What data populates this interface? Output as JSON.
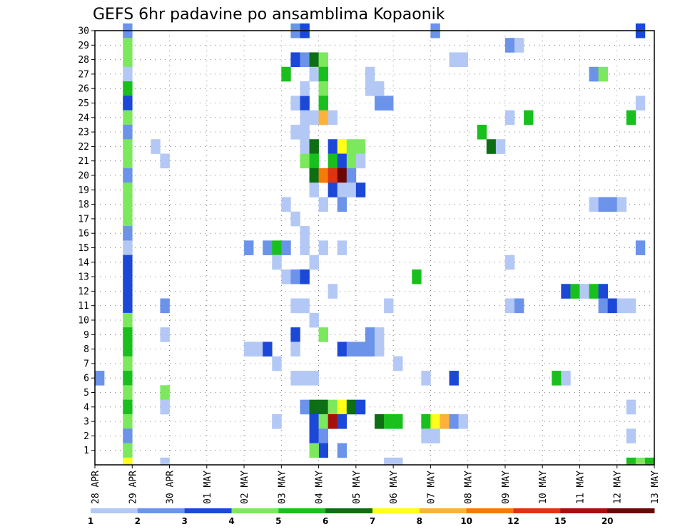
{
  "chart_data": {
    "type": "heatmap",
    "title": "GEFS 6hr padavine po ansamblima Kopaonik",
    "xlabel": "",
    "ylabel": "",
    "x_tick_labels": [
      "28 APR",
      "29 APR",
      "30 APR",
      "01 MAY",
      "02 MAY",
      "03 MAY",
      "04 MAY",
      "05 MAY",
      "06 MAY",
      "07 MAY",
      "08 MAY",
      "09 MAY",
      "10 MAY",
      "11 MAY",
      "12 MAY",
      "13 MAY"
    ],
    "x_steps": 60,
    "steps_per_day": 4,
    "y_range": [
      0,
      30
    ],
    "y_tick_labels": [
      "1",
      "2",
      "3",
      "4",
      "5",
      "6",
      "7",
      "8",
      "9",
      "10",
      "11",
      "12",
      "13",
      "14",
      "15",
      "16",
      "17",
      "18",
      "19",
      "20",
      "21",
      "22",
      "23",
      "24",
      "25",
      "26",
      "27",
      "28",
      "29",
      "30"
    ],
    "grid": true,
    "colorbar": {
      "labels": [
        "1",
        "2",
        "3",
        "4",
        "5",
        "6",
        "7",
        "8",
        "10",
        "12",
        "15",
        "20"
      ],
      "colors": [
        "#b3c8f5",
        "#6b93ea",
        "#1c48d8",
        "#7ce85e",
        "#19c01d",
        "#0e6e13",
        "#ffff1a",
        "#fbb13a",
        "#f47a0a",
        "#dd3412",
        "#a5100f",
        "#6b0606"
      ]
    },
    "cells": [
      [
        3,
        30,
        1
      ],
      [
        3,
        29,
        3
      ],
      [
        3,
        28,
        3
      ],
      [
        3,
        27,
        0
      ],
      [
        3,
        26,
        4
      ],
      [
        3,
        25,
        2
      ],
      [
        3,
        24,
        3
      ],
      [
        3,
        23,
        1
      ],
      [
        3,
        22,
        3
      ],
      [
        3,
        21,
        3
      ],
      [
        3,
        20,
        1
      ],
      [
        3,
        19,
        3
      ],
      [
        3,
        18,
        3
      ],
      [
        3,
        17,
        3
      ],
      [
        3,
        16,
        1
      ],
      [
        3,
        15,
        0
      ],
      [
        3,
        14,
        2
      ],
      [
        3,
        13,
        2
      ],
      [
        3,
        12,
        2
      ],
      [
        3,
        11,
        2
      ],
      [
        3,
        10,
        3
      ],
      [
        3,
        9,
        4
      ],
      [
        3,
        8,
        4
      ],
      [
        3,
        7,
        3
      ],
      [
        3,
        6,
        4
      ],
      [
        3,
        5,
        3
      ],
      [
        3,
        4,
        4
      ],
      [
        3,
        3,
        3
      ],
      [
        3,
        2,
        1
      ],
      [
        3,
        1,
        3
      ],
      [
        3,
        0,
        6
      ],
      [
        0,
        6,
        1
      ],
      [
        6,
        22,
        0
      ],
      [
        7,
        21,
        0
      ],
      [
        7,
        11,
        1
      ],
      [
        7,
        9,
        0
      ],
      [
        7,
        5,
        3
      ],
      [
        7,
        4,
        0
      ],
      [
        7,
        0,
        0
      ],
      [
        16,
        15,
        1
      ],
      [
        16,
        8,
        0
      ],
      [
        17,
        8,
        0
      ],
      [
        18,
        8,
        2
      ],
      [
        18,
        15,
        1
      ],
      [
        19,
        15,
        4
      ],
      [
        20,
        15,
        1
      ],
      [
        19,
        14,
        0
      ],
      [
        19,
        7,
        0
      ],
      [
        19,
        3,
        0
      ],
      [
        20,
        18,
        0
      ],
      [
        20,
        13,
        0
      ],
      [
        21,
        30,
        1
      ],
      [
        22,
        30,
        2
      ],
      [
        21,
        28,
        2
      ],
      [
        22,
        28,
        1
      ],
      [
        21,
        25,
        0
      ],
      [
        22,
        25,
        2
      ],
      [
        22,
        26,
        0
      ],
      [
        21,
        23,
        0
      ],
      [
        22,
        23,
        0
      ],
      [
        22,
        22,
        0
      ],
      [
        21,
        17,
        0
      ],
      [
        22,
        16,
        0
      ],
      [
        21,
        13,
        1
      ],
      [
        22,
        13,
        2
      ],
      [
        21,
        11,
        0
      ],
      [
        22,
        11,
        0
      ],
      [
        21,
        9,
        2
      ],
      [
        21,
        8,
        0
      ],
      [
        21,
        6,
        0
      ],
      [
        22,
        6,
        0
      ],
      [
        23,
        6,
        0
      ],
      [
        20,
        27,
        4
      ],
      [
        23,
        28,
        5
      ],
      [
        24,
        28,
        3
      ],
      [
        23,
        27,
        0
      ],
      [
        24,
        27,
        4
      ],
      [
        24,
        26,
        3
      ],
      [
        24,
        25,
        4
      ],
      [
        22,
        24,
        0
      ],
      [
        23,
        24,
        0
      ],
      [
        24,
        24,
        7
      ],
      [
        25,
        24,
        0
      ],
      [
        23,
        22,
        5
      ],
      [
        25,
        22,
        2
      ],
      [
        26,
        22,
        6
      ],
      [
        27,
        22,
        3
      ],
      [
        28,
        22,
        3
      ],
      [
        22,
        21,
        3
      ],
      [
        23,
        21,
        4
      ],
      [
        25,
        21,
        4
      ],
      [
        26,
        21,
        2
      ],
      [
        27,
        21,
        3
      ],
      [
        28,
        21,
        0
      ],
      [
        24,
        20,
        0
      ],
      [
        23,
        20,
        5
      ],
      [
        24,
        20,
        8
      ],
      [
        25,
        20,
        9
      ],
      [
        26,
        20,
        11
      ],
      [
        27,
        20,
        1
      ],
      [
        23,
        19,
        0
      ],
      [
        25,
        19,
        2
      ],
      [
        26,
        19,
        0
      ],
      [
        27,
        19,
        0
      ],
      [
        28,
        19,
        2
      ],
      [
        24,
        18,
        0
      ],
      [
        26,
        18,
        1
      ],
      [
        22,
        15,
        0
      ],
      [
        24,
        15,
        0
      ],
      [
        26,
        15,
        0
      ],
      [
        23,
        14,
        0
      ],
      [
        25,
        12,
        0
      ],
      [
        23,
        10,
        0
      ],
      [
        24,
        9,
        3
      ],
      [
        26,
        8,
        2
      ],
      [
        27,
        8,
        1
      ],
      [
        28,
        8,
        1
      ],
      [
        29,
        8,
        1
      ],
      [
        30,
        8,
        0
      ],
      [
        29,
        9,
        1
      ],
      [
        30,
        9,
        0
      ],
      [
        22,
        4,
        1
      ],
      [
        23,
        4,
        5
      ],
      [
        24,
        4,
        5
      ],
      [
        25,
        4,
        3
      ],
      [
        26,
        4,
        6
      ],
      [
        27,
        4,
        5
      ],
      [
        28,
        4,
        2
      ],
      [
        23,
        3,
        2
      ],
      [
        24,
        3,
        3
      ],
      [
        25,
        3,
        10
      ],
      [
        26,
        3,
        2
      ],
      [
        19,
        3,
        0
      ],
      [
        23,
        2,
        2
      ],
      [
        24,
        2,
        1
      ],
      [
        24,
        1,
        2
      ],
      [
        23,
        1,
        3
      ],
      [
        26,
        1,
        1
      ],
      [
        30,
        3,
        5
      ],
      [
        31,
        3,
        4
      ],
      [
        32,
        3,
        4
      ],
      [
        31,
        0,
        0
      ],
      [
        32,
        0,
        0
      ],
      [
        29,
        27,
        0
      ],
      [
        29,
        26,
        0
      ],
      [
        30,
        25,
        1
      ],
      [
        31,
        25,
        1
      ],
      [
        30,
        26,
        0
      ],
      [
        32,
        7,
        0
      ],
      [
        31,
        11,
        0
      ],
      [
        34,
        13,
        4
      ],
      [
        35,
        6,
        0
      ],
      [
        35,
        3,
        4
      ],
      [
        36,
        3,
        6
      ],
      [
        37,
        3,
        7
      ],
      [
        38,
        3,
        1
      ],
      [
        39,
        3,
        0
      ],
      [
        35,
        2,
        0
      ],
      [
        36,
        2,
        0
      ],
      [
        38,
        6,
        2
      ],
      [
        38,
        28,
        0
      ],
      [
        39,
        28,
        0
      ],
      [
        36,
        30,
        1
      ],
      [
        41,
        23,
        4
      ],
      [
        42,
        22,
        5
      ],
      [
        43,
        22,
        0
      ],
      [
        44,
        29,
        1
      ],
      [
        45,
        29,
        0
      ],
      [
        44,
        24,
        0
      ],
      [
        46,
        24,
        4
      ],
      [
        44,
        14,
        0
      ],
      [
        44,
        11,
        0
      ],
      [
        45,
        11,
        1
      ],
      [
        49,
        6,
        4
      ],
      [
        50,
        6,
        0
      ],
      [
        50,
        12,
        2
      ],
      [
        51,
        12,
        4
      ],
      [
        52,
        12,
        0
      ],
      [
        53,
        12,
        4
      ],
      [
        54,
        12,
        2
      ],
      [
        54,
        11,
        1
      ],
      [
        55,
        11,
        2
      ],
      [
        56,
        11,
        0
      ],
      [
        53,
        27,
        1
      ],
      [
        54,
        27,
        3
      ],
      [
        53,
        18,
        0
      ],
      [
        54,
        18,
        1
      ],
      [
        55,
        18,
        1
      ],
      [
        56,
        18,
        0
      ],
      [
        57,
        24,
        4
      ],
      [
        58,
        15,
        1
      ],
      [
        58,
        25,
        0
      ],
      [
        58,
        30,
        2
      ],
      [
        57,
        11,
        0
      ],
      [
        57,
        4,
        0
      ],
      [
        57,
        2,
        0
      ],
      [
        57,
        0,
        4
      ],
      [
        58,
        0,
        3
      ],
      [
        59,
        0,
        4
      ]
    ]
  }
}
